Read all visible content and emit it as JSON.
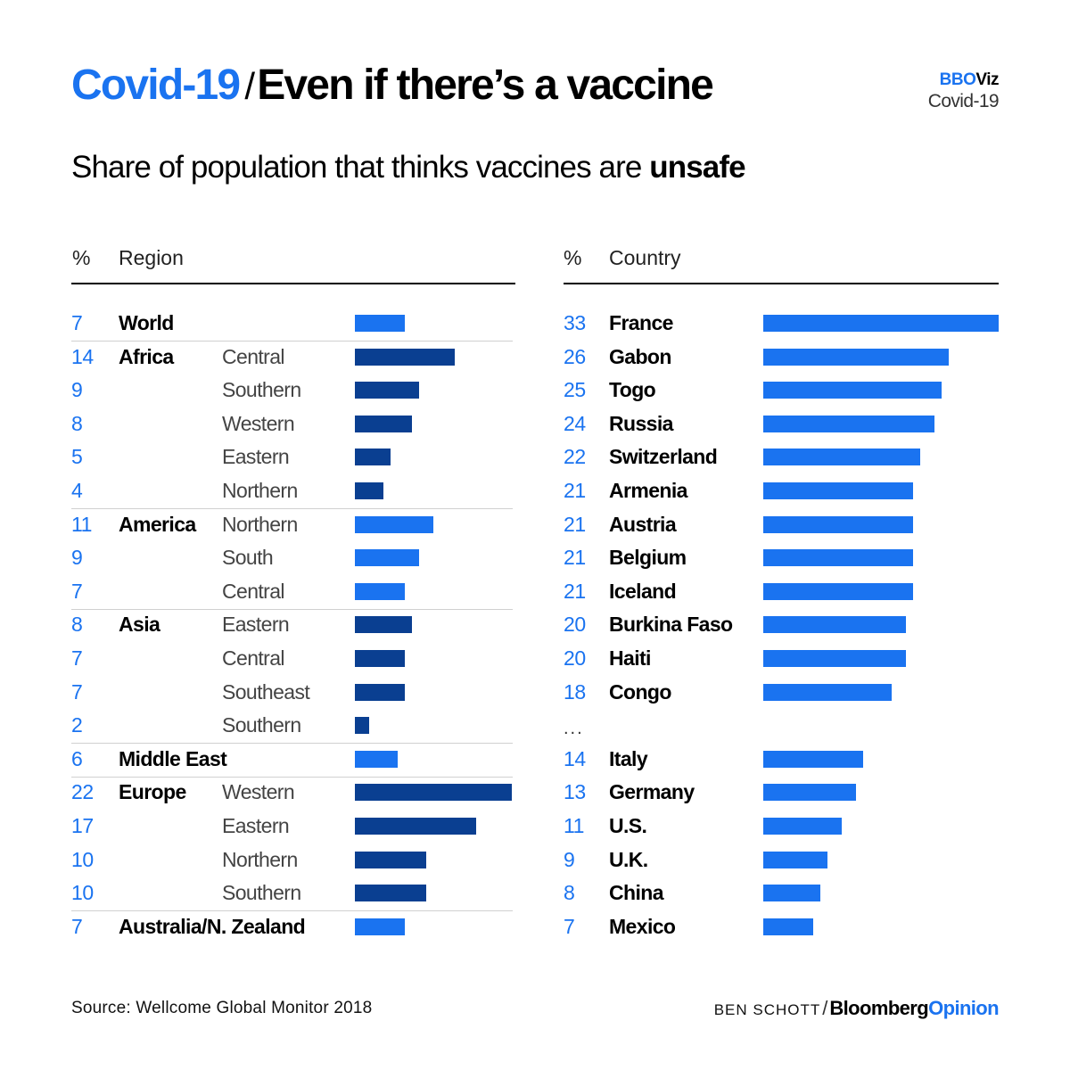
{
  "header": {
    "title_topic": "Covid-19",
    "title_separator": "/",
    "title_main": "Even if there’s a vaccine",
    "brand_prefix": "BBO",
    "brand_suffix": "Viz",
    "brand_sub": "Covid-19"
  },
  "subtitle": {
    "text": "Share of population that thinks vaccines are",
    "emphasis": "unsafe"
  },
  "colors": {
    "region_bar": "#0a3f91",
    "highlight_bar": "#1a73f0",
    "country_bar": "#1a73f0",
    "number_text": "#1a73f0"
  },
  "chart_data": [
    {
      "type": "bar",
      "orientation": "horizontal",
      "title": "Share of population that thinks vaccines are unsafe — by region",
      "unit_label": "%",
      "category_header": "Region",
      "xlim": [
        0,
        22
      ],
      "rows": [
        {
          "value": 7,
          "region": "World",
          "subregion": "",
          "group_start": true,
          "highlight": true
        },
        {
          "value": 14,
          "region": "Africa",
          "subregion": "Central",
          "group_start": true,
          "highlight": false
        },
        {
          "value": 9,
          "region": "",
          "subregion": "Southern",
          "group_start": false,
          "highlight": false
        },
        {
          "value": 8,
          "region": "",
          "subregion": "Western",
          "group_start": false,
          "highlight": false
        },
        {
          "value": 5,
          "region": "",
          "subregion": "Eastern",
          "group_start": false,
          "highlight": false
        },
        {
          "value": 4,
          "region": "",
          "subregion": "Northern",
          "group_start": false,
          "highlight": false
        },
        {
          "value": 11,
          "region": "America",
          "subregion": "Northern",
          "group_start": true,
          "highlight": true
        },
        {
          "value": 9,
          "region": "",
          "subregion": "South",
          "group_start": false,
          "highlight": true
        },
        {
          "value": 7,
          "region": "",
          "subregion": "Central",
          "group_start": false,
          "highlight": true
        },
        {
          "value": 8,
          "region": "Asia",
          "subregion": "Eastern",
          "group_start": true,
          "highlight": false
        },
        {
          "value": 7,
          "region": "",
          "subregion": "Central",
          "group_start": false,
          "highlight": false
        },
        {
          "value": 7,
          "region": "",
          "subregion": "Southeast",
          "group_start": false,
          "highlight": false
        },
        {
          "value": 2,
          "region": "",
          "subregion": "Southern",
          "group_start": false,
          "highlight": false
        },
        {
          "value": 6,
          "region": "Middle East",
          "subregion": "",
          "group_start": true,
          "highlight": true
        },
        {
          "value": 22,
          "region": "Europe",
          "subregion": "Western",
          "group_start": true,
          "highlight": false
        },
        {
          "value": 17,
          "region": "",
          "subregion": "Eastern",
          "group_start": false,
          "highlight": false
        },
        {
          "value": 10,
          "region": "",
          "subregion": "Northern",
          "group_start": false,
          "highlight": false
        },
        {
          "value": 10,
          "region": "",
          "subregion": "Southern",
          "group_start": false,
          "highlight": false
        },
        {
          "value": 7,
          "region": "Australia/N. Zealand",
          "subregion": "",
          "group_start": true,
          "highlight": true
        }
      ]
    },
    {
      "type": "bar",
      "orientation": "horizontal",
      "title": "Share of population that thinks vaccines are unsafe — by country",
      "unit_label": "%",
      "category_header": "Country",
      "xlim": [
        0,
        33
      ],
      "gap_marker": "...",
      "gap_after_index": 11,
      "rows": [
        {
          "value": 33,
          "country": "France"
        },
        {
          "value": 26,
          "country": "Gabon"
        },
        {
          "value": 25,
          "country": "Togo"
        },
        {
          "value": 24,
          "country": "Russia"
        },
        {
          "value": 22,
          "country": "Switzerland"
        },
        {
          "value": 21,
          "country": "Armenia"
        },
        {
          "value": 21,
          "country": "Austria"
        },
        {
          "value": 21,
          "country": "Belgium"
        },
        {
          "value": 21,
          "country": "Iceland"
        },
        {
          "value": 20,
          "country": "Burkina Faso"
        },
        {
          "value": 20,
          "country": "Haiti"
        },
        {
          "value": 18,
          "country": "Congo"
        },
        {
          "value": 14,
          "country": "Italy"
        },
        {
          "value": 13,
          "country": "Germany"
        },
        {
          "value": 11,
          "country": "U.S."
        },
        {
          "value": 9,
          "country": "U.K."
        },
        {
          "value": 8,
          "country": "China"
        },
        {
          "value": 7,
          "country": "Mexico"
        }
      ]
    }
  ],
  "footer": {
    "source": "Source: Wellcome Global Monitor 2018",
    "author": "BEN SCHOTT",
    "slash": "/",
    "publisher_a": "Bloomberg",
    "publisher_b": "Opinion"
  }
}
